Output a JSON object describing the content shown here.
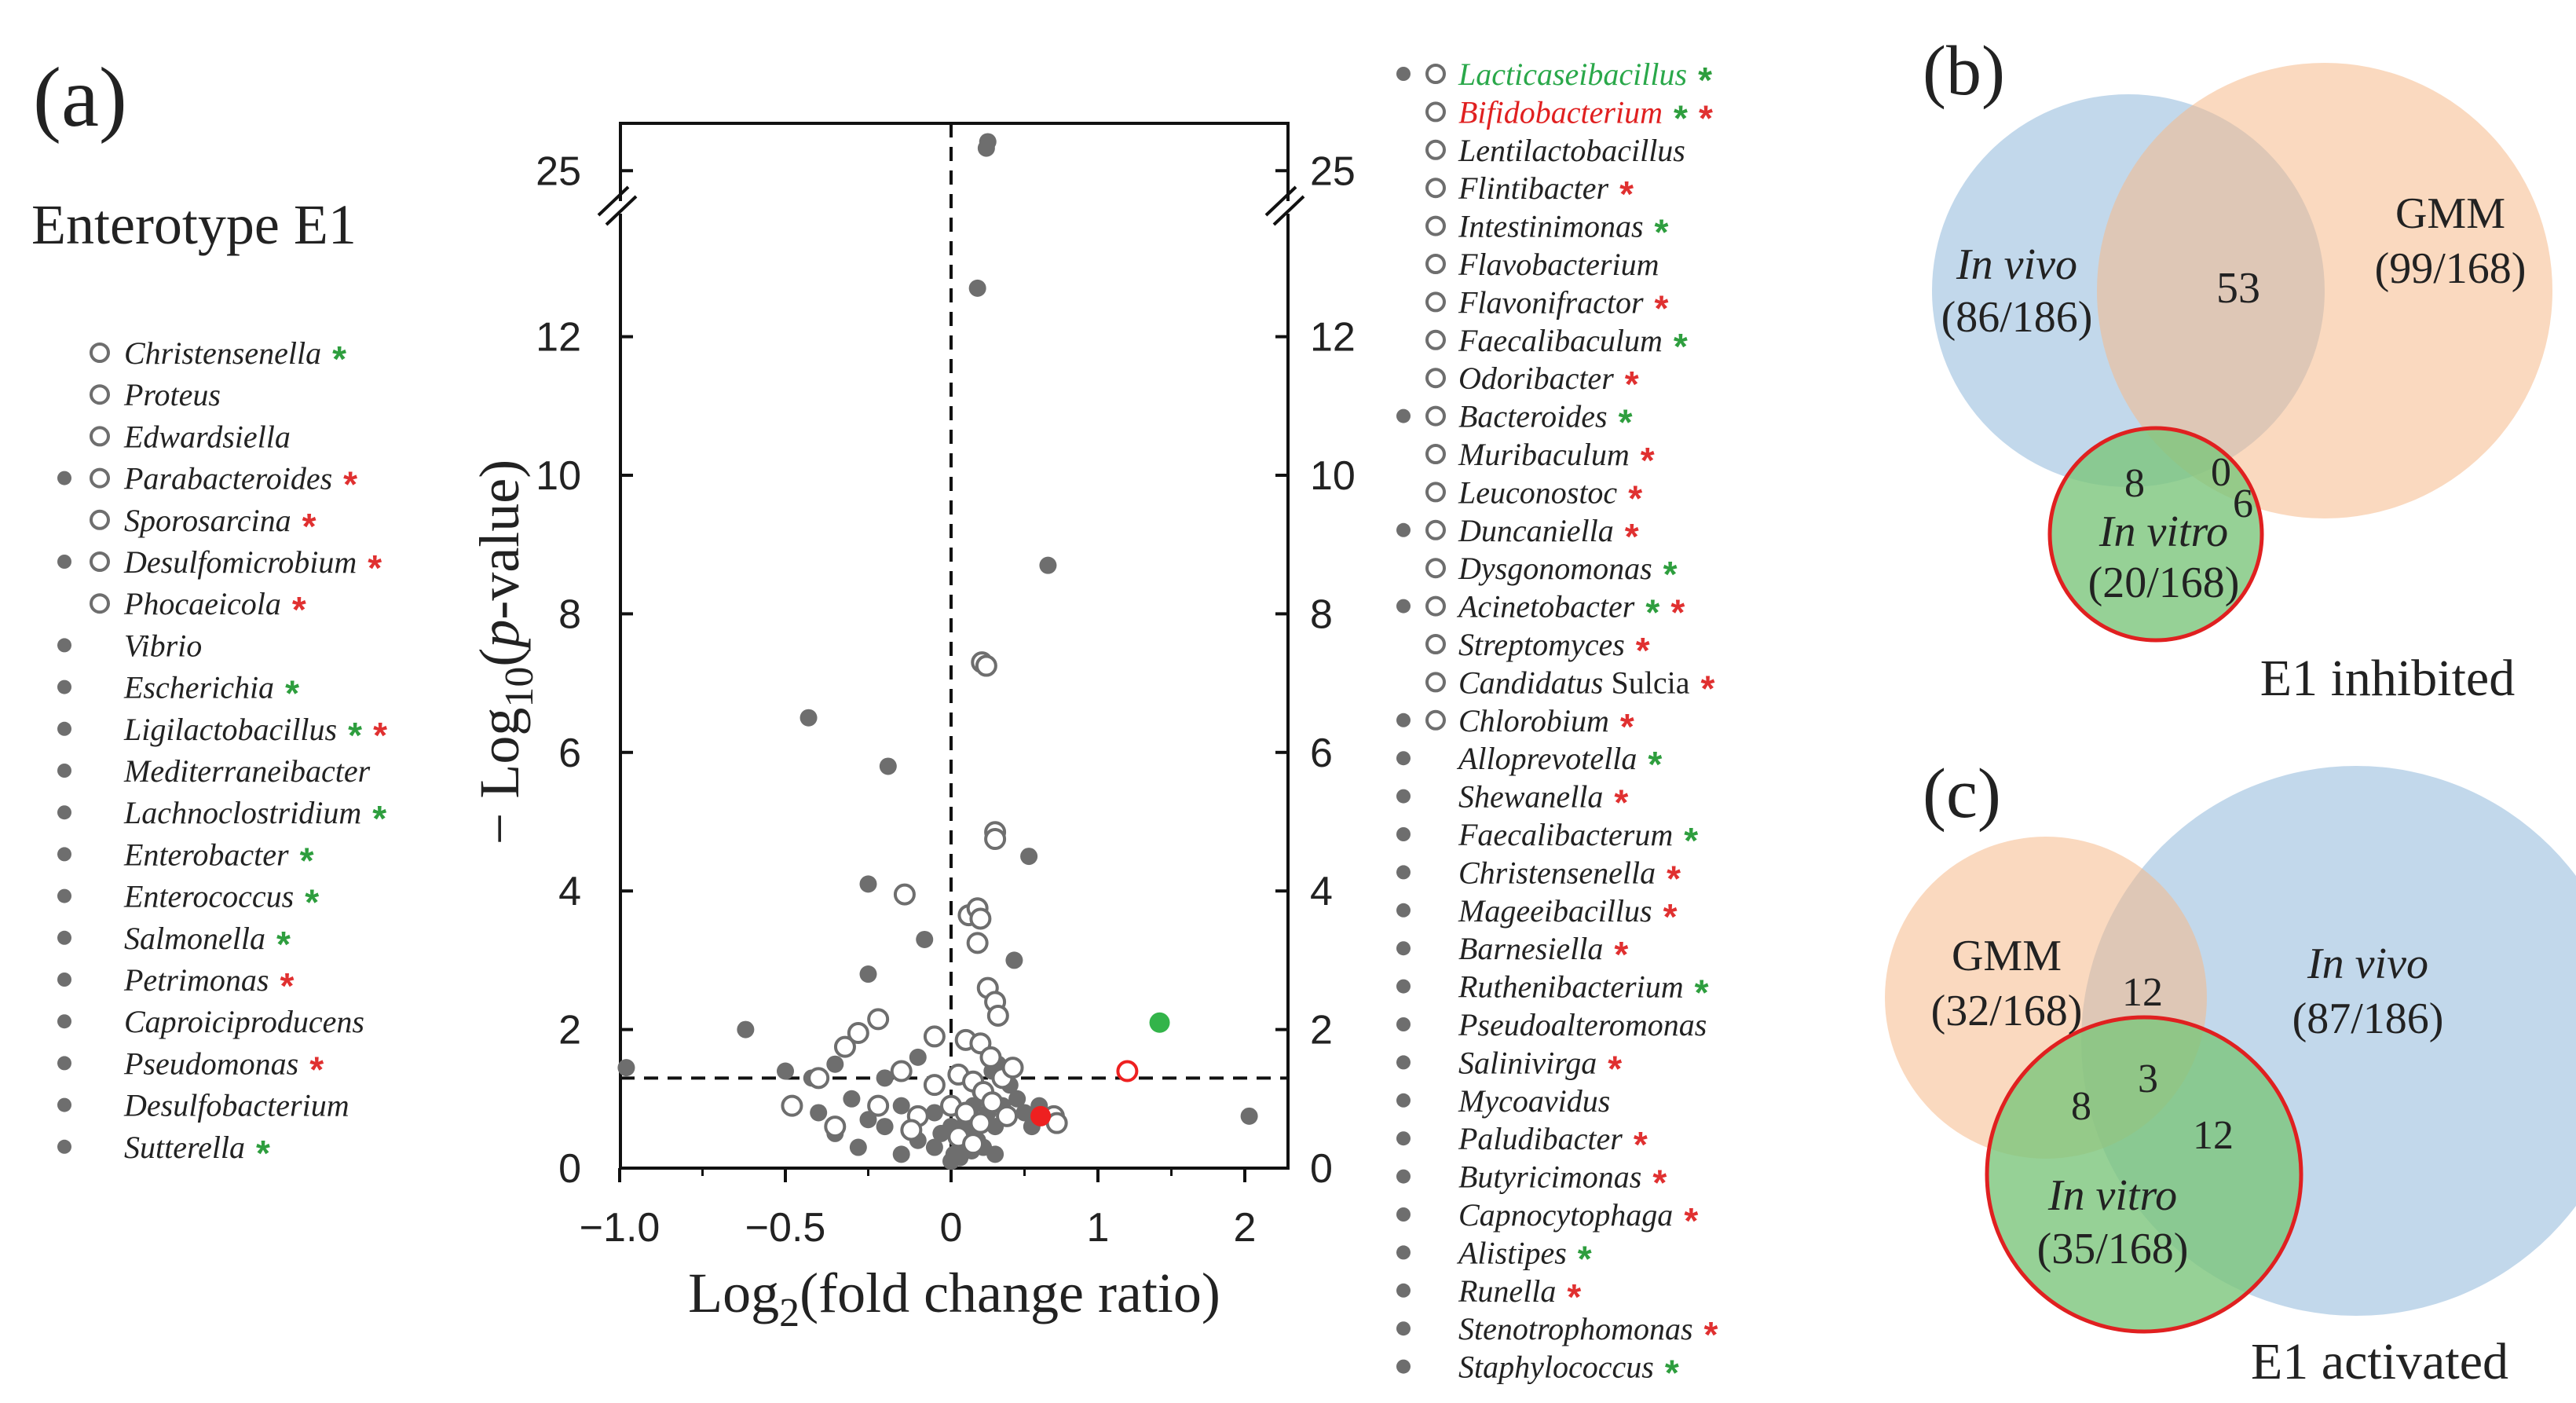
{
  "panel_labels": {
    "a": "(a)",
    "b": "(b)",
    "c": "(c)"
  },
  "colors": {
    "gray": "#6e6e6e",
    "green_star": "#2e9e3e",
    "red_star": "#e03030",
    "green_text": "#2aa84a",
    "red_text": "#e02020",
    "venn_blue": "#8fb8da",
    "venn_orange": "#f5b98a",
    "venn_green": "#7cc67c",
    "venn_stroke": "#e02020",
    "green_point": "#33b44a",
    "red_point": "#ee2020"
  },
  "enterotype_title": "Enterotype E1",
  "left_legend": [
    {
      "name": "Christensenella",
      "filled": false,
      "open": true,
      "stars": [
        "green"
      ]
    },
    {
      "name": "Proteus",
      "filled": false,
      "open": true,
      "stars": []
    },
    {
      "name": "Edwardsiella",
      "filled": false,
      "open": true,
      "stars": []
    },
    {
      "name": "Parabacteroides",
      "filled": true,
      "open": true,
      "stars": [
        "red"
      ]
    },
    {
      "name": "Sporosarcina",
      "filled": false,
      "open": true,
      "stars": [
        "red"
      ]
    },
    {
      "name": "Desulfomicrobium",
      "filled": true,
      "open": true,
      "stars": [
        "red"
      ]
    },
    {
      "name": "Phocaeicola",
      "filled": false,
      "open": true,
      "stars": [
        "red"
      ]
    },
    {
      "name": "Vibrio",
      "filled": true,
      "open": false,
      "stars": []
    },
    {
      "name": "Escherichia",
      "filled": true,
      "open": false,
      "stars": [
        "green"
      ]
    },
    {
      "name": "Ligilactobacillus",
      "filled": true,
      "open": false,
      "stars": [
        "green",
        "red"
      ]
    },
    {
      "name": "Mediterraneibacter",
      "filled": true,
      "open": false,
      "stars": []
    },
    {
      "name": "Lachnoclostridium",
      "filled": true,
      "open": false,
      "stars": [
        "green"
      ]
    },
    {
      "name": "Enterobacter",
      "filled": true,
      "open": false,
      "stars": [
        "green"
      ]
    },
    {
      "name": "Enterococcus",
      "filled": true,
      "open": false,
      "stars": [
        "green"
      ]
    },
    {
      "name": "Salmonella",
      "filled": true,
      "open": false,
      "stars": [
        "green"
      ]
    },
    {
      "name": "Petrimonas",
      "filled": true,
      "open": false,
      "stars": [
        "red"
      ]
    },
    {
      "name": "Caproiciproducens",
      "filled": true,
      "open": false,
      "stars": []
    },
    {
      "name": "Pseudomonas",
      "filled": true,
      "open": false,
      "stars": [
        "red"
      ]
    },
    {
      "name": "Desulfobacterium",
      "filled": true,
      "open": false,
      "stars": []
    },
    {
      "name": "Sutterella",
      "filled": true,
      "open": false,
      "stars": [
        "green"
      ]
    }
  ],
  "right_legend": [
    {
      "name": "Lacticaseibacillus",
      "filled": true,
      "open": true,
      "stars": [
        "green"
      ],
      "color": "green"
    },
    {
      "name": "Bifidobacterium",
      "filled": false,
      "open": true,
      "stars": [
        "green",
        "red"
      ],
      "color": "red"
    },
    {
      "name": "Lentilactobacillus",
      "filled": false,
      "open": true,
      "stars": []
    },
    {
      "name": "Flintibacter",
      "filled": false,
      "open": true,
      "stars": [
        "red"
      ]
    },
    {
      "name": "Intestinimonas",
      "filled": false,
      "open": true,
      "stars": [
        "green"
      ]
    },
    {
      "name": "Flavobacterium",
      "filled": false,
      "open": true,
      "stars": []
    },
    {
      "name": "Flavonifractor",
      "filled": false,
      "open": true,
      "stars": [
        "red"
      ]
    },
    {
      "name": "Faecalibaculum",
      "filled": false,
      "open": true,
      "stars": [
        "green"
      ]
    },
    {
      "name": "Odoribacter",
      "filled": false,
      "open": true,
      "stars": [
        "red"
      ]
    },
    {
      "name": "Bacteroides",
      "filled": true,
      "open": true,
      "stars": [
        "green"
      ]
    },
    {
      "name": "Muribaculum",
      "filled": false,
      "open": true,
      "stars": [
        "red"
      ]
    },
    {
      "name": "Leuconostoc",
      "filled": false,
      "open": true,
      "stars": [
        "red"
      ]
    },
    {
      "name": "Duncaniella",
      "filled": true,
      "open": true,
      "stars": [
        "red"
      ]
    },
    {
      "name": "Dysgonomonas",
      "filled": false,
      "open": true,
      "stars": [
        "green"
      ]
    },
    {
      "name": "Acinetobacter",
      "filled": true,
      "open": true,
      "stars": [
        "green",
        "red"
      ]
    },
    {
      "name": "Streptomyces",
      "filled": false,
      "open": true,
      "stars": [
        "red"
      ]
    },
    {
      "name": "Candidatus",
      "suffix": "Sulcia",
      "filled": false,
      "open": true,
      "stars": [
        "red"
      ]
    },
    {
      "name": "Chlorobium",
      "filled": true,
      "open": true,
      "stars": [
        "red"
      ]
    },
    {
      "name": "Alloprevotella",
      "filled": true,
      "open": false,
      "stars": [
        "green"
      ]
    },
    {
      "name": "Shewanella",
      "filled": true,
      "open": false,
      "stars": [
        "red"
      ]
    },
    {
      "name": "Faecalibacterum",
      "filled": true,
      "open": false,
      "stars": [
        "green"
      ]
    },
    {
      "name": "Christensenella",
      "filled": true,
      "open": false,
      "stars": [
        "red"
      ]
    },
    {
      "name": "Mageeibacillus",
      "filled": true,
      "open": false,
      "stars": [
        "red"
      ]
    },
    {
      "name": "Barnesiella",
      "filled": true,
      "open": false,
      "stars": [
        "red"
      ]
    },
    {
      "name": "Ruthenibacterium",
      "filled": true,
      "open": false,
      "stars": [
        "green"
      ]
    },
    {
      "name": "Pseudoalteromonas",
      "filled": true,
      "open": false,
      "stars": []
    },
    {
      "name": "Salinivirga",
      "filled": true,
      "open": false,
      "stars": [
        "red"
      ]
    },
    {
      "name": "Mycoavidus",
      "filled": true,
      "open": false,
      "stars": []
    },
    {
      "name": "Paludibacter",
      "filled": true,
      "open": false,
      "stars": [
        "red"
      ]
    },
    {
      "name": "Butyricimonas",
      "filled": true,
      "open": false,
      "stars": [
        "red"
      ]
    },
    {
      "name": "Capnocytophaga",
      "filled": true,
      "open": false,
      "stars": [
        "red"
      ]
    },
    {
      "name": "Alistipes",
      "filled": true,
      "open": false,
      "stars": [
        "green"
      ]
    },
    {
      "name": "Runella",
      "filled": true,
      "open": false,
      "stars": [
        "red"
      ]
    },
    {
      "name": "Stenotrophomonas",
      "filled": true,
      "open": false,
      "stars": [
        "red"
      ]
    },
    {
      "name": "Staphylococcus",
      "filled": true,
      "open": false,
      "stars": [
        "green"
      ]
    }
  ],
  "chart_data": {
    "type": "scatter",
    "title": "",
    "xlabel_base": "Log",
    "xlabel_sub": "2",
    "xlabel_rest": "(fold change ratio)",
    "ylabel_pre": "− Log",
    "ylabel_sub": "10",
    "ylabel_rest_a": "(",
    "ylabel_p": "p",
    "ylabel_rest_b": "-value)",
    "xlim": [
      -1.05,
      2.3
    ],
    "x_ticks": [
      -1.0,
      -0.5,
      0,
      1,
      2
    ],
    "x_tick_labels": [
      "−1.0",
      "−0.5",
      "0",
      "1",
      "2"
    ],
    "y_ticks_lower": [
      0,
      2,
      4,
      6,
      8,
      10,
      12
    ],
    "y_tick_labels_lower": [
      "0",
      "2",
      "4",
      "6",
      "8",
      "10",
      "12"
    ],
    "y_lower_range": [
      0,
      14
    ],
    "y_ticks_upper": [
      25
    ],
    "y_tick_labels_upper": [
      "25"
    ],
    "y_upper_range": [
      24.2,
      26.4
    ],
    "significance_y": 1.3,
    "series": [
      {
        "name": "filled",
        "style": "filled",
        "points": [
          [
            0.25,
            25.9
          ],
          [
            0.24,
            25.7
          ],
          [
            0.18,
            12.7
          ],
          [
            0.66,
            8.7
          ],
          [
            -0.43,
            6.5
          ],
          [
            -0.19,
            5.8
          ],
          [
            0.53,
            4.5
          ],
          [
            -0.25,
            4.1
          ],
          [
            -0.08,
            3.3
          ],
          [
            0.43,
            3.0
          ],
          [
            -0.25,
            2.8
          ],
          [
            -0.62,
            2.0
          ],
          [
            -0.98,
            1.45
          ],
          [
            -0.35,
            1.5
          ],
          [
            -0.5,
            1.4
          ],
          [
            -0.42,
            1.3
          ],
          [
            -0.1,
            1.6
          ],
          [
            -0.2,
            1.3
          ],
          [
            -0.3,
            1.0
          ],
          [
            -0.15,
            0.9
          ],
          [
            -0.05,
            0.8
          ],
          [
            0.0,
            0.6
          ],
          [
            0.05,
            0.5
          ],
          [
            0.1,
            0.7
          ],
          [
            0.15,
            0.9
          ],
          [
            0.2,
            1.1
          ],
          [
            0.25,
            0.8
          ],
          [
            0.3,
            0.6
          ],
          [
            0.35,
            0.9
          ],
          [
            0.4,
            1.2
          ],
          [
            0.45,
            1.0
          ],
          [
            0.5,
            0.8
          ],
          [
            -0.1,
            0.4
          ],
          [
            -0.05,
            0.3
          ],
          [
            0.02,
            0.2
          ],
          [
            0.08,
            0.3
          ],
          [
            0.12,
            0.5
          ],
          [
            -0.2,
            0.6
          ],
          [
            -0.25,
            0.7
          ],
          [
            -0.35,
            0.5
          ],
          [
            -0.4,
            0.8
          ],
          [
            0.18,
            0.4
          ],
          [
            0.22,
            0.3
          ],
          [
            0.28,
            1.4
          ],
          [
            0.32,
            1.5
          ],
          [
            -0.15,
            0.2
          ],
          [
            2.03,
            0.75
          ],
          [
            0.0,
            0.1
          ],
          [
            0.06,
            0.15
          ],
          [
            -0.03,
            0.5
          ],
          [
            0.14,
            0.25
          ],
          [
            0.55,
            0.6
          ],
          [
            0.6,
            0.9
          ],
          [
            0.3,
            0.2
          ],
          [
            -0.28,
            0.3
          ]
        ]
      },
      {
        "name": "open",
        "style": "open",
        "points": [
          [
            0.21,
            7.3
          ],
          [
            0.24,
            7.25
          ],
          [
            0.3,
            4.85
          ],
          [
            0.3,
            4.75
          ],
          [
            -0.14,
            3.95
          ],
          [
            0.12,
            3.65
          ],
          [
            0.18,
            3.75
          ],
          [
            0.2,
            3.6
          ],
          [
            0.18,
            3.25
          ],
          [
            0.25,
            2.6
          ],
          [
            0.3,
            2.4
          ],
          [
            0.32,
            2.2
          ],
          [
            -0.22,
            2.15
          ],
          [
            -0.28,
            1.95
          ],
          [
            -0.05,
            1.9
          ],
          [
            0.1,
            1.85
          ],
          [
            0.2,
            1.8
          ],
          [
            0.27,
            1.6
          ],
          [
            -0.32,
            1.75
          ],
          [
            -0.4,
            1.3
          ],
          [
            -0.15,
            1.4
          ],
          [
            -0.05,
            1.2
          ],
          [
            0.05,
            1.35
          ],
          [
            0.15,
            1.25
          ],
          [
            0.22,
            1.1
          ],
          [
            0.35,
            1.3
          ],
          [
            0.42,
            1.45
          ],
          [
            -0.48,
            0.9
          ],
          [
            -0.22,
            0.9
          ],
          [
            -0.1,
            0.75
          ],
          [
            0.0,
            0.9
          ],
          [
            0.1,
            0.8
          ],
          [
            0.2,
            0.65
          ],
          [
            0.28,
            0.95
          ],
          [
            0.38,
            0.75
          ],
          [
            0.7,
            0.75
          ],
          [
            0.72,
            0.65
          ],
          [
            -0.35,
            0.6
          ],
          [
            0.05,
            0.45
          ],
          [
            0.15,
            0.35
          ],
          [
            -0.12,
            0.55
          ]
        ]
      },
      {
        "name": "Lacticaseibacillus",
        "style": "green",
        "points": [
          [
            1.42,
            2.1
          ]
        ]
      },
      {
        "name": "Bifidobacterium",
        "style": "red_open",
        "points": [
          [
            1.2,
            1.4
          ]
        ]
      },
      {
        "name": "Bifidobacterium (filled)",
        "style": "red",
        "points": [
          [
            0.61,
            0.75
          ]
        ]
      }
    ]
  },
  "venn_b": {
    "invivo_line1": "In vivo",
    "invivo_line2": "(86/186)",
    "gmm_line1": "GMM",
    "gmm_line2": "(99/168)",
    "overlap": "53",
    "invitro_line1": "In vitro",
    "invitro_line2": "(20/168)",
    "n_8": "8",
    "n_0": "0",
    "n_6": "6",
    "caption": "E1 inhibited"
  },
  "venn_c": {
    "gmm_line1": "GMM",
    "gmm_line2": "(32/168)",
    "invivo_line1": "In vivo",
    "invivo_line2": "(87/186)",
    "invitro_line1": "In vitro",
    "invitro_line2": "(35/168)",
    "n_12a": "12",
    "n_3": "3",
    "n_8": "8",
    "n_12b": "12",
    "caption": "E1 activated"
  }
}
